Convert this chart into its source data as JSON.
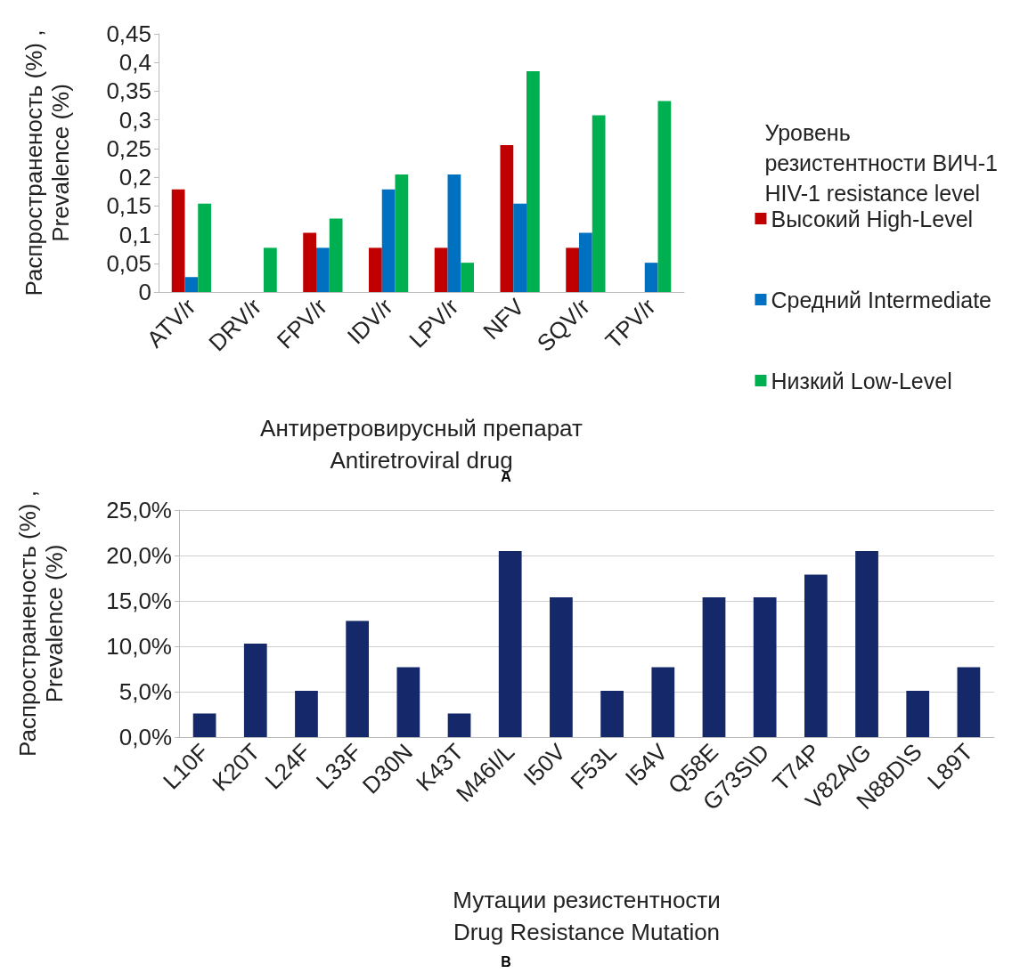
{
  "chart_data": [
    {
      "type": "bar",
      "ylabel": "Распространеность (%) ,\nPrevalence (%)",
      "xlabel": "Антиретровирусный препарат\nAntiretroviral drug",
      "legend_title": "Уровень\nрезистентности ВИЧ-1\nHIV-1 resistance level",
      "legend": "right",
      "grid": false,
      "annotations": [
        "A"
      ],
      "categories": [
        "ATV/r",
        "DRV/r",
        "FPV/r",
        "IDV/r",
        "LPV/r",
        "NFV",
        "SQV/r",
        "TPV/r"
      ],
      "ylim": [
        0,
        0.45
      ],
      "yticks": [
        {
          "value": 0,
          "label": "0"
        },
        {
          "value": 0.05,
          "label": "0,05"
        },
        {
          "value": 0.1,
          "label": "0,1"
        },
        {
          "value": 0.15,
          "label": "0,15"
        },
        {
          "value": 0.2,
          "label": "0,2"
        },
        {
          "value": 0.25,
          "label": "0,25"
        },
        {
          "value": 0.3,
          "label": "0,3"
        },
        {
          "value": 0.35,
          "label": "0,35"
        },
        {
          "value": 0.4,
          "label": "0,4"
        },
        {
          "value": 0.45,
          "label": "0,45"
        }
      ],
      "series": [
        {
          "name": "Высокий High-Level",
          "color": "#c00000",
          "values": [
            0.179,
            0,
            0.103,
            0.077,
            0.077,
            0.256,
            0.077,
            0
          ]
        },
        {
          "name": "Средний Intermediate",
          "color": "#0070c0",
          "values": [
            0.026,
            0,
            0.077,
            0.179,
            0.205,
            0.154,
            0.103,
            0.051
          ]
        },
        {
          "name": "Низкий Low-Level",
          "color": "#00b050",
          "values": [
            0.154,
            0.077,
            0.128,
            0.205,
            0.051,
            0.385,
            0.308,
            0.333
          ]
        }
      ]
    },
    {
      "type": "bar",
      "ylabel": "Распространеность (%) ,\nPrevalence (%)",
      "xlabel": "Мутации резистентности\nDrug Resistance Mutation",
      "grid": "y",
      "annotations": [
        "B"
      ],
      "categories": [
        "L10F",
        "K20T",
        "L24F",
        "L33F",
        "D30N",
        "K43T",
        "M46I/L",
        "I50V",
        "F53L",
        "I54V",
        "Q58E",
        "G73S\\D",
        "T74P",
        "V82A/G",
        "N88D\\S",
        "L89T"
      ],
      "ylim": [
        0,
        25
      ],
      "yticks": [
        {
          "value": 0,
          "label": "0,0%"
        },
        {
          "value": 5,
          "label": "5,0%"
        },
        {
          "value": 10,
          "label": "10,0%"
        },
        {
          "value": 15,
          "label": "15,0%"
        },
        {
          "value": 20,
          "label": "20,0%"
        },
        {
          "value": 25,
          "label": "25,0%"
        }
      ],
      "series": [
        {
          "color": "#14286a",
          "values": [
            2.6,
            10.3,
            5.1,
            12.8,
            7.7,
            2.6,
            20.5,
            15.4,
            5.1,
            7.7,
            15.4,
            15.4,
            17.9,
            20.5,
            5.1,
            7.7
          ]
        }
      ]
    }
  ]
}
